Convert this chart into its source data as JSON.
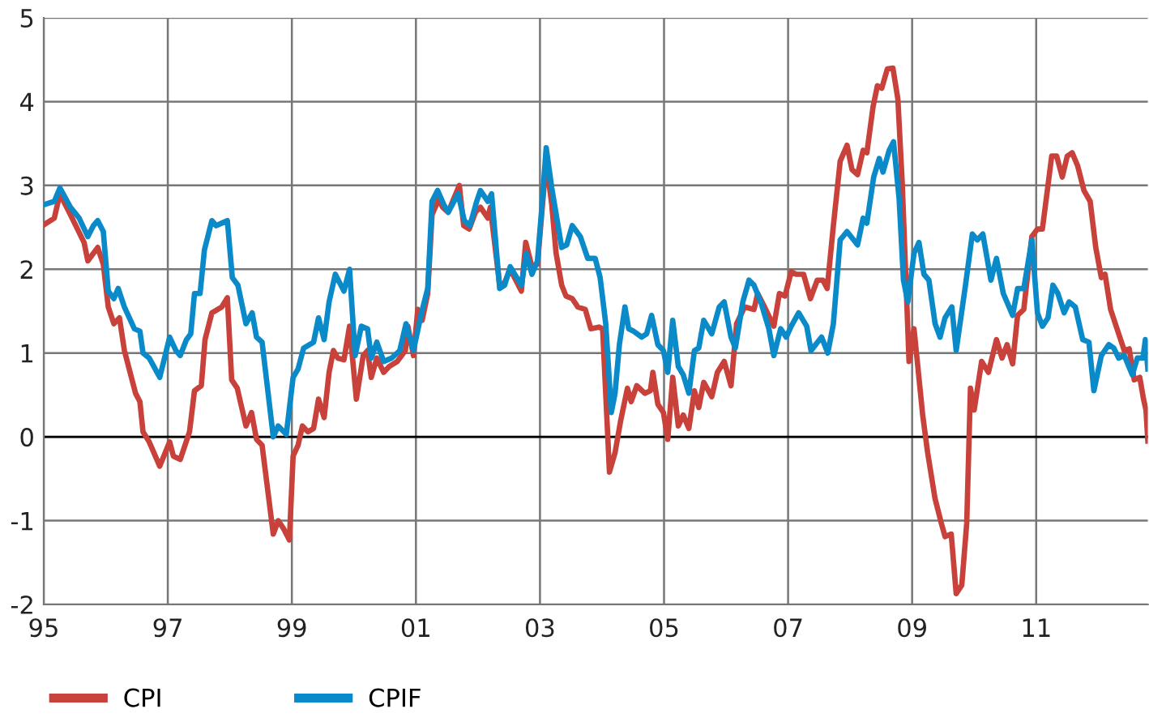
{
  "chart_data": {
    "type": "line",
    "xlim": [
      1995,
      2012.8
    ],
    "ylim": [
      -2,
      5
    ],
    "xticks": [
      {
        "value": 1995,
        "label": "95"
      },
      {
        "value": 1997,
        "label": "97"
      },
      {
        "value": 1999,
        "label": "99"
      },
      {
        "value": 2001,
        "label": "01"
      },
      {
        "value": 2003,
        "label": "03"
      },
      {
        "value": 2005,
        "label": "05"
      },
      {
        "value": 2007,
        "label": "07"
      },
      {
        "value": 2009,
        "label": "09"
      },
      {
        "value": 2011,
        "label": "11"
      }
    ],
    "yticks": [
      -2,
      -1,
      0,
      1,
      2,
      3,
      4,
      5
    ],
    "grid": true,
    "legend": "bottom",
    "line_style": "solid",
    "marker": "none",
    "ref_lines": [
      {
        "axis": "y",
        "value": 0,
        "color": "#000000"
      }
    ],
    "series": [
      {
        "name": "CPI",
        "color": "#c8413a",
        "x": [
          1995.0,
          1995.17,
          1995.26,
          1995.43,
          1995.65,
          1995.71,
          1995.87,
          1995.96,
          1996.04,
          1996.13,
          1996.22,
          1996.3,
          1996.48,
          1996.55,
          1996.6,
          1996.7,
          1996.87,
          1997.03,
          1997.09,
          1997.2,
          1997.35,
          1997.43,
          1997.54,
          1997.6,
          1997.71,
          1997.87,
          1997.96,
          1998.03,
          1998.12,
          1998.26,
          1998.35,
          1998.43,
          1998.52,
          1998.7,
          1998.78,
          1998.87,
          1998.96,
          1999.02,
          1999.1,
          1999.17,
          1999.26,
          1999.35,
          1999.43,
          1999.52,
          1999.6,
          1999.67,
          1999.74,
          1999.84,
          1999.93,
          2000.04,
          2000.15,
          2000.22,
          2000.28,
          2000.37,
          2000.48,
          2000.57,
          2000.7,
          2000.83,
          2000.87,
          2000.96,
          2001.03,
          2001.1,
          2001.19,
          2001.26,
          2001.37,
          2001.43,
          2001.52,
          2001.61,
          2001.7,
          2001.77,
          2001.86,
          2001.96,
          2002.04,
          2002.16,
          2002.2,
          2002.35,
          2002.43,
          2002.52,
          2002.7,
          2002.77,
          2002.87,
          2002.96,
          2003.03,
          2003.1,
          2003.19,
          2003.26,
          2003.35,
          2003.42,
          2003.52,
          2003.61,
          2003.73,
          2003.82,
          2003.95,
          2004.01,
          2004.12,
          2004.21,
          2004.3,
          2004.41,
          2004.47,
          2004.56,
          2004.69,
          2004.78,
          2004.82,
          2004.9,
          2004.99,
          2005.06,
          2005.14,
          2005.23,
          2005.31,
          2005.4,
          2005.49,
          2005.56,
          2005.64,
          2005.77,
          2005.86,
          2005.97,
          2006.08,
          2006.17,
          2006.3,
          2006.45,
          2006.51,
          2006.6,
          2006.77,
          2006.86,
          2006.95,
          2007.05,
          2007.13,
          2007.25,
          2007.36,
          2007.47,
          2007.56,
          2007.63,
          2007.73,
          2007.84,
          2007.95,
          2008.03,
          2008.12,
          2008.21,
          2008.27,
          2008.37,
          2008.44,
          2008.51,
          2008.6,
          2008.69,
          2008.77,
          2008.84,
          2008.95,
          2009.03,
          2009.17,
          2009.25,
          2009.37,
          2009.47,
          2009.53,
          2009.63,
          2009.71,
          2009.8,
          2009.88,
          2009.94,
          2010.0,
          2010.12,
          2010.23,
          2010.36,
          2010.45,
          2010.53,
          2010.62,
          2010.7,
          2010.8,
          2010.93,
          2011.02,
          2011.1,
          2011.25,
          2011.33,
          2011.42,
          2011.5,
          2011.58,
          2011.67,
          2011.77,
          2011.87,
          2011.96,
          2012.05,
          2012.11,
          2012.2,
          2012.33,
          2012.42,
          2012.5,
          2012.58,
          2012.67,
          2012.73,
          2012.77,
          2012.8
        ],
        "values": [
          2.53,
          2.61,
          2.9,
          2.65,
          2.32,
          2.1,
          2.26,
          2.06,
          1.55,
          1.35,
          1.42,
          1.03,
          0.52,
          0.42,
          0.06,
          -0.06,
          -0.35,
          -0.06,
          -0.23,
          -0.27,
          0.06,
          0.55,
          0.61,
          1.16,
          1.48,
          1.55,
          1.66,
          0.68,
          0.58,
          0.13,
          0.29,
          -0.03,
          -0.1,
          -1.16,
          -1.0,
          -1.1,
          -1.23,
          -0.23,
          -0.1,
          0.13,
          0.06,
          0.1,
          0.45,
          0.23,
          0.77,
          1.03,
          0.94,
          0.92,
          1.32,
          0.45,
          0.97,
          1.03,
          0.71,
          0.94,
          0.77,
          0.84,
          0.9,
          1.03,
          1.32,
          0.97,
          1.52,
          1.39,
          1.71,
          2.65,
          2.84,
          2.74,
          2.68,
          2.84,
          3.0,
          2.52,
          2.48,
          2.68,
          2.74,
          2.61,
          2.74,
          1.81,
          1.84,
          2.0,
          1.74,
          2.32,
          2.03,
          2.06,
          2.68,
          3.29,
          2.77,
          2.19,
          1.81,
          1.68,
          1.65,
          1.55,
          1.52,
          1.29,
          1.31,
          1.29,
          -0.42,
          -0.19,
          0.19,
          0.58,
          0.42,
          0.61,
          0.52,
          0.55,
          0.77,
          0.39,
          0.29,
          -0.03,
          0.71,
          0.13,
          0.26,
          0.1,
          0.55,
          0.35,
          0.65,
          0.48,
          0.77,
          0.9,
          0.61,
          1.35,
          1.55,
          1.52,
          1.71,
          1.58,
          1.32,
          1.71,
          1.68,
          1.97,
          1.94,
          1.94,
          1.65,
          1.87,
          1.87,
          1.77,
          2.52,
          3.29,
          3.48,
          3.19,
          3.13,
          3.42,
          3.39,
          3.94,
          4.19,
          4.16,
          4.39,
          4.4,
          4.03,
          3.03,
          0.9,
          1.29,
          0.26,
          -0.19,
          -0.74,
          -1.03,
          -1.19,
          -1.16,
          -1.87,
          -1.77,
          -1.03,
          0.58,
          0.32,
          0.9,
          0.77,
          1.16,
          0.94,
          1.1,
          0.87,
          1.45,
          1.52,
          2.39,
          2.48,
          2.48,
          3.35,
          3.35,
          3.1,
          3.35,
          3.39,
          3.23,
          2.94,
          2.81,
          2.26,
          1.9,
          1.94,
          1.52,
          1.23,
          1.03,
          1.05,
          0.68,
          0.71,
          0.45,
          0.32,
          -0.05
        ]
      },
      {
        "name": "CPIF",
        "color": "#0a8ac8",
        "x": [
          1995.0,
          1995.17,
          1995.26,
          1995.43,
          1995.57,
          1995.71,
          1995.8,
          1995.87,
          1995.96,
          1996.04,
          1996.13,
          1996.2,
          1996.3,
          1996.46,
          1996.55,
          1996.6,
          1996.7,
          1996.87,
          1997.03,
          1997.13,
          1997.2,
          1997.3,
          1997.37,
          1997.43,
          1997.52,
          1997.59,
          1997.71,
          1997.78,
          1997.87,
          1997.96,
          1998.04,
          1998.13,
          1998.26,
          1998.36,
          1998.43,
          1998.52,
          1998.7,
          1998.78,
          1998.91,
          1999.02,
          1999.1,
          1999.19,
          1999.35,
          1999.43,
          1999.52,
          1999.6,
          1999.7,
          1999.84,
          1999.93,
          2000.02,
          2000.12,
          2000.22,
          2000.28,
          2000.37,
          2000.48,
          2000.61,
          2000.74,
          2000.84,
          2000.96,
          2001.09,
          2001.19,
          2001.26,
          2001.35,
          2001.45,
          2001.52,
          2001.68,
          2001.78,
          2001.87,
          2001.98,
          2002.04,
          2002.16,
          2002.22,
          2002.35,
          2002.43,
          2002.52,
          2002.7,
          2002.78,
          2002.87,
          2002.96,
          2003.03,
          2003.1,
          2003.19,
          2003.35,
          2003.43,
          2003.52,
          2003.65,
          2003.77,
          2003.89,
          2003.97,
          2004.06,
          2004.15,
          2004.21,
          2004.28,
          2004.37,
          2004.43,
          2004.51,
          2004.64,
          2004.72,
          2004.8,
          2004.9,
          2004.99,
          2005.06,
          2005.14,
          2005.23,
          2005.31,
          2005.4,
          2005.49,
          2005.56,
          2005.64,
          2005.77,
          2005.89,
          2005.97,
          2006.08,
          2006.15,
          2006.27,
          2006.37,
          2006.45,
          2006.56,
          2006.69,
          2006.77,
          2006.88,
          2006.97,
          2007.05,
          2007.17,
          2007.3,
          2007.37,
          2007.54,
          2007.64,
          2007.73,
          2007.84,
          2007.95,
          2008.12,
          2008.21,
          2008.27,
          2008.38,
          2008.47,
          2008.53,
          2008.63,
          2008.7,
          2008.79,
          2008.86,
          2008.93,
          2009.03,
          2009.11,
          2009.19,
          2009.27,
          2009.37,
          2009.45,
          2009.53,
          2009.64,
          2009.71,
          2009.86,
          2009.97,
          2010.05,
          2010.14,
          2010.27,
          2010.36,
          2010.47,
          2010.62,
          2010.7,
          2010.8,
          2010.93,
          2011.02,
          2011.1,
          2011.19,
          2011.27,
          2011.35,
          2011.45,
          2011.53,
          2011.63,
          2011.75,
          2011.85,
          2011.93,
          2012.05,
          2012.17,
          2012.25,
          2012.33,
          2012.42,
          2012.55,
          2012.63,
          2012.72,
          2012.76,
          2012.8
        ],
        "values": [
          2.77,
          2.81,
          2.97,
          2.74,
          2.61,
          2.39,
          2.52,
          2.58,
          2.45,
          1.74,
          1.65,
          1.77,
          1.55,
          1.29,
          1.26,
          1.0,
          0.94,
          0.71,
          1.19,
          1.03,
          0.97,
          1.16,
          1.23,
          1.71,
          1.71,
          2.23,
          2.58,
          2.52,
          2.55,
          2.58,
          1.9,
          1.81,
          1.35,
          1.48,
          1.19,
          1.13,
          0.0,
          0.13,
          0.03,
          0.71,
          0.81,
          1.06,
          1.13,
          1.42,
          1.16,
          1.61,
          1.94,
          1.74,
          2.0,
          0.97,
          1.32,
          1.29,
          0.94,
          1.13,
          0.9,
          0.94,
          1.03,
          1.35,
          1.03,
          1.48,
          1.77,
          2.81,
          2.94,
          2.77,
          2.68,
          2.9,
          2.58,
          2.52,
          2.81,
          2.94,
          2.81,
          2.9,
          1.77,
          1.81,
          2.03,
          1.81,
          2.19,
          1.94,
          2.1,
          2.74,
          3.45,
          2.97,
          2.26,
          2.29,
          2.52,
          2.39,
          2.13,
          2.13,
          1.9,
          1.35,
          0.29,
          0.52,
          1.1,
          1.55,
          1.29,
          1.26,
          1.19,
          1.23,
          1.45,
          1.1,
          1.03,
          0.77,
          1.39,
          0.84,
          0.74,
          0.52,
          1.03,
          1.06,
          1.39,
          1.23,
          1.55,
          1.61,
          1.19,
          1.06,
          1.61,
          1.87,
          1.81,
          1.61,
          1.29,
          0.97,
          1.29,
          1.19,
          1.32,
          1.48,
          1.32,
          1.03,
          1.19,
          1.0,
          1.35,
          2.35,
          2.45,
          2.29,
          2.61,
          2.55,
          3.1,
          3.32,
          3.16,
          3.42,
          3.52,
          2.84,
          1.87,
          1.61,
          2.19,
          2.32,
          1.94,
          1.87,
          1.35,
          1.19,
          1.42,
          1.55,
          1.03,
          1.81,
          2.42,
          2.35,
          2.42,
          1.87,
          2.13,
          1.71,
          1.45,
          1.77,
          1.77,
          2.35,
          1.48,
          1.32,
          1.42,
          1.81,
          1.71,
          1.48,
          1.61,
          1.55,
          1.16,
          1.13,
          0.55,
          0.97,
          1.1,
          1.06,
          0.94,
          0.97,
          0.74,
          0.94,
          0.94,
          1.16,
          0.81
        ]
      }
    ]
  }
}
